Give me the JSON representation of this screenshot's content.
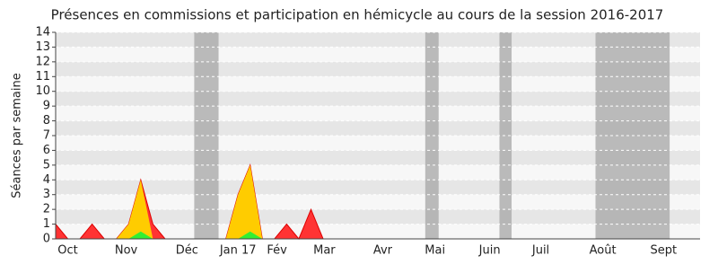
{
  "chart_data": {
    "type": "area",
    "title": "Présences en commissions et participation en hémicycle au cours de la session 2016-2017",
    "y_label": "Séances par semaine",
    "x": [
      0,
      1,
      2,
      3,
      4,
      5,
      6,
      7,
      8,
      9,
      10,
      11,
      12,
      13,
      14,
      15,
      16,
      17,
      18,
      19,
      20,
      21,
      22,
      23,
      24,
      25,
      26,
      27,
      28,
      29,
      30,
      31,
      32,
      33,
      34,
      35,
      36,
      37,
      38,
      39,
      40,
      41,
      42,
      43,
      44,
      45,
      46,
      47,
      48,
      49,
      50,
      51,
      52
    ],
    "series": [
      {
        "color": "#ff3333",
        "values": [
          1,
          0,
          0,
          1,
          0,
          0,
          1,
          4,
          1,
          0,
          0,
          0,
          0,
          0,
          0,
          3,
          5,
          0,
          0,
          1,
          0,
          2,
          0,
          0,
          0,
          0,
          0,
          0,
          0,
          0,
          0,
          0,
          0,
          0,
          0,
          0,
          0,
          0,
          0,
          0,
          0,
          0,
          0,
          0,
          0,
          0,
          0,
          0,
          0,
          0,
          0,
          0,
          0
        ]
      },
      {
        "color": "#ffcc00",
        "values": [
          0,
          0,
          0,
          0,
          0,
          0,
          1,
          4,
          0,
          0,
          0,
          0,
          0,
          0,
          0,
          3,
          5,
          0,
          0,
          0,
          0,
          0,
          0,
          0,
          0,
          0,
          0,
          0,
          0,
          0,
          0,
          0,
          0,
          0,
          0,
          0,
          0,
          0,
          0,
          0,
          0,
          0,
          0,
          0,
          0,
          0,
          0,
          0,
          0,
          0,
          0,
          0,
          0
        ]
      },
      {
        "color": "#33ee33",
        "values": [
          0,
          0,
          0,
          0,
          0,
          0,
          0,
          0.5,
          0,
          0,
          0,
          0,
          0,
          0,
          0,
          0,
          0.5,
          0,
          0,
          0,
          0,
          0,
          0,
          0,
          0,
          0,
          0,
          0,
          0,
          0,
          0,
          0,
          0,
          0,
          0,
          0,
          0,
          0,
          0,
          0,
          0,
          0,
          0,
          0,
          0,
          0,
          0,
          0,
          0,
          0,
          0,
          0,
          0
        ]
      }
    ],
    "shaded_ranges": [
      [
        11.4,
        13.4
      ],
      [
        30.4,
        31.5
      ],
      [
        36.5,
        37.5
      ],
      [
        44.4,
        50.5
      ]
    ],
    "xlim": [
      0,
      53
    ],
    "xticks": [
      {
        "value": 1,
        "label": "Oct"
      },
      {
        "value": 5.8,
        "label": "Nov"
      },
      {
        "value": 10.8,
        "label": "Déc"
      },
      {
        "value": 15,
        "label": "Jan 17"
      },
      {
        "value": 18.2,
        "label": "Fév"
      },
      {
        "value": 22.1,
        "label": "Mar"
      },
      {
        "value": 26.9,
        "label": "Avr"
      },
      {
        "value": 31.2,
        "label": "Mai"
      },
      {
        "value": 35.7,
        "label": "Juin"
      },
      {
        "value": 39.9,
        "label": "Juil"
      },
      {
        "value": 45,
        "label": "Août"
      },
      {
        "value": 50,
        "label": "Sept"
      }
    ],
    "ylim": [
      0,
      14
    ],
    "yticks": [
      0,
      1,
      2,
      3,
      4,
      5,
      6,
      7,
      8,
      9,
      10,
      11,
      12,
      13,
      14
    ],
    "grid": true
  }
}
